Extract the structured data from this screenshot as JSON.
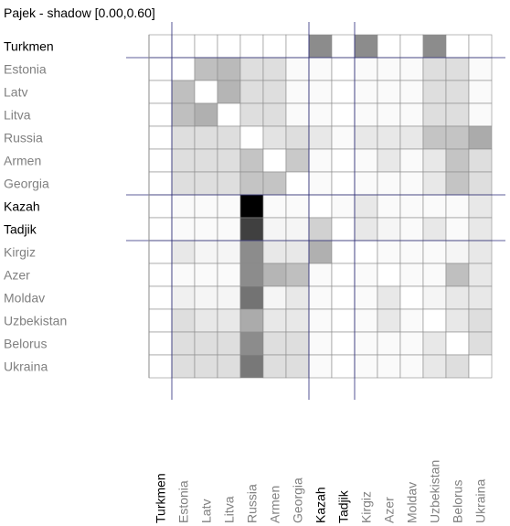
{
  "title": "Pajek - shadow [0.00,0.60]",
  "labels": [
    "Turkmen",
    "Estonia",
    "Latv",
    "Litva",
    "Russia",
    "Armen",
    "Georgia",
    "Kazah",
    "Tadjik",
    "Kirgiz",
    "Azer",
    "Moldav",
    "Uzbekistan",
    "Belorus",
    "Ukraina"
  ],
  "highlighted": [
    "Turkmen",
    "Kazah",
    "Tadjik"
  ],
  "partition_after_index": [
    0,
    6,
    8
  ],
  "colors": {
    "highlight_text": "#000000",
    "normal_text": "#808080",
    "grid": "#8a8a8a",
    "partition_line": "#2a2a7a"
  },
  "shadow_matrix": [
    [
      0,
      0,
      0,
      0,
      0,
      0,
      0,
      45,
      0,
      45,
      0,
      0,
      45,
      0,
      0
    ],
    [
      0,
      0,
      25,
      27,
      13,
      13,
      2,
      2,
      0,
      2,
      2,
      2,
      13,
      13,
      2
    ],
    [
      0,
      25,
      0,
      29,
      13,
      13,
      2,
      2,
      0,
      2,
      2,
      2,
      13,
      13,
      2
    ],
    [
      0,
      25,
      31,
      0,
      13,
      13,
      2,
      2,
      0,
      2,
      2,
      2,
      13,
      13,
      2
    ],
    [
      0,
      13,
      13,
      13,
      0,
      11,
      13,
      9,
      2,
      9,
      9,
      9,
      23,
      23,
      33
    ],
    [
      0,
      13,
      13,
      13,
      23,
      0,
      21,
      2,
      0,
      2,
      9,
      2,
      9,
      23,
      13
    ],
    [
      0,
      13,
      13,
      13,
      23,
      23,
      0,
      2,
      0,
      2,
      2,
      2,
      9,
      23,
      13
    ],
    [
      0,
      2,
      2,
      2,
      100,
      2,
      2,
      0,
      2,
      9,
      2,
      2,
      2,
      2,
      9
    ],
    [
      0,
      2,
      2,
      2,
      75,
      4,
      4,
      18,
      0,
      9,
      4,
      2,
      9,
      2,
      9
    ],
    [
      0,
      9,
      4,
      4,
      45,
      9,
      9,
      31,
      0,
      0,
      2,
      2,
      2,
      4,
      9
    ],
    [
      0,
      2,
      2,
      2,
      45,
      29,
      25,
      2,
      0,
      2,
      0,
      2,
      2,
      25,
      9
    ],
    [
      0,
      6,
      4,
      4,
      55,
      4,
      9,
      2,
      0,
      2,
      9,
      0,
      4,
      9,
      9
    ],
    [
      0,
      13,
      9,
      9,
      33,
      9,
      9,
      2,
      0,
      2,
      9,
      2,
      0,
      9,
      13
    ],
    [
      0,
      13,
      13,
      13,
      45,
      13,
      13,
      2,
      0,
      2,
      2,
      2,
      9,
      0,
      13
    ],
    [
      0,
      13,
      13,
      13,
      53,
      13,
      13,
      2,
      0,
      2,
      2,
      2,
      9,
      13,
      0
    ]
  ]
}
